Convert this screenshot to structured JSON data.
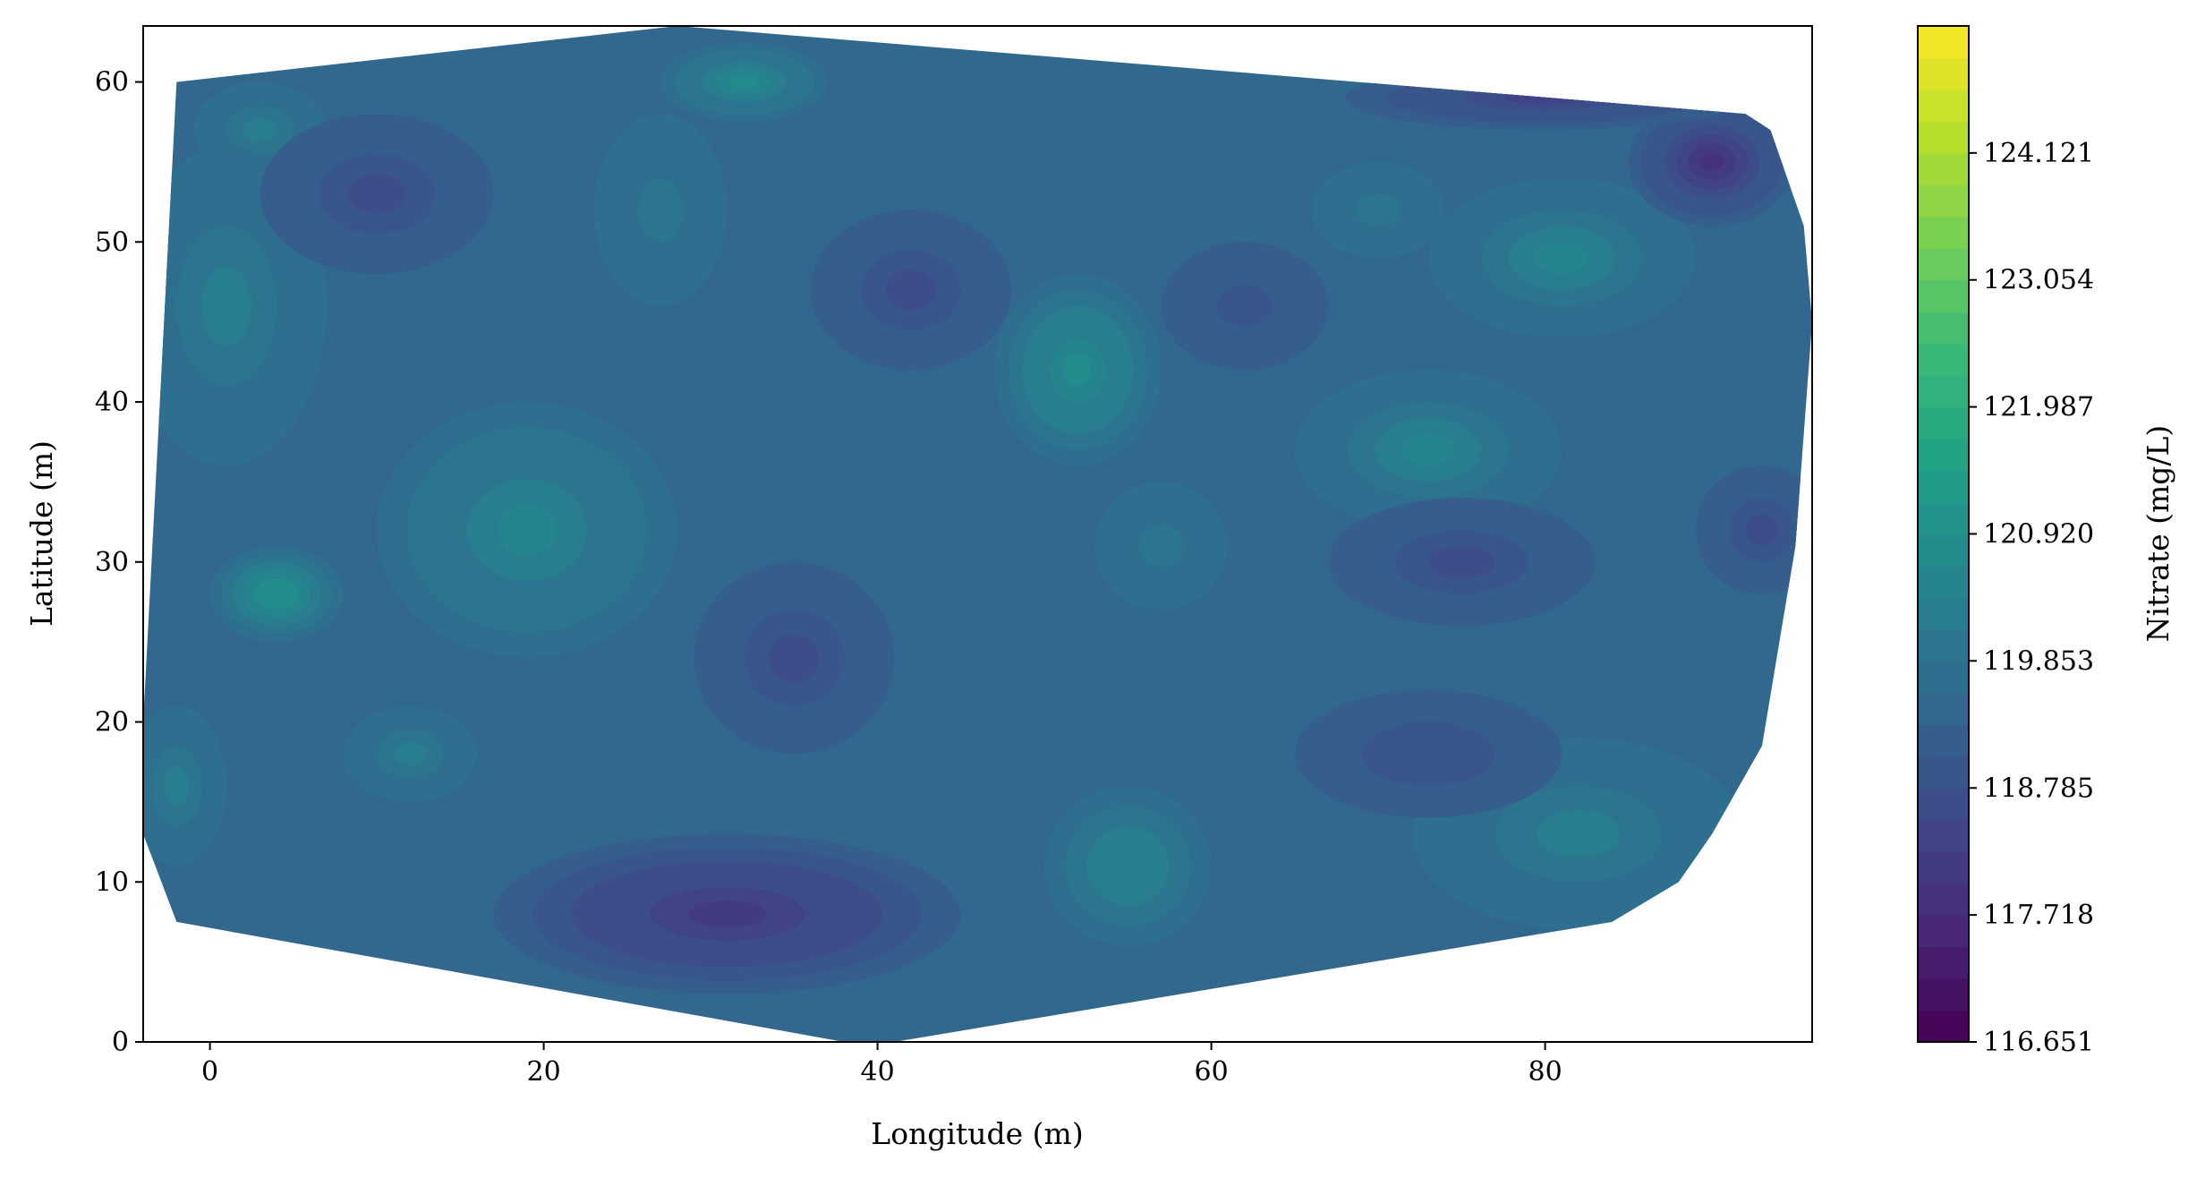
{
  "chart_data": {
    "type": "contour",
    "xlabel": "Longitude (m)",
    "ylabel": "Latitude (m)",
    "xlim": [
      -4,
      96
    ],
    "ylim": [
      0,
      63.5
    ],
    "xticks": [
      0,
      20,
      40,
      60,
      80
    ],
    "yticks": [
      0,
      10,
      20,
      30,
      40,
      50,
      60
    ],
    "colorbar": {
      "label": "Nitrate (mg/L)",
      "colormap": "viridis",
      "range": [
        116.651,
        125.188
      ],
      "ticks": [
        116.651,
        117.718,
        118.785,
        119.853,
        120.92,
        121.987,
        123.054,
        124.121
      ],
      "tick_labels": [
        "116.651",
        "117.718",
        "118.785",
        "119.853",
        "120.920",
        "121.987",
        "123.054",
        "124.121"
      ],
      "levels": 32
    },
    "hull": [
      [
        -2,
        60
      ],
      [
        28,
        63.5
      ],
      [
        92,
        58
      ],
      [
        93.5,
        57
      ],
      [
        95.5,
        51
      ],
      [
        96,
        45
      ],
      [
        95,
        31
      ],
      [
        93,
        18.5
      ],
      [
        90,
        13
      ],
      [
        88,
        10
      ],
      [
        84,
        7.5
      ],
      [
        41,
        0
      ],
      [
        38,
        0
      ],
      [
        -2,
        7.5
      ],
      [
        -4,
        13
      ],
      [
        -4,
        20
      ],
      [
        -3,
        40
      ]
    ],
    "background_value": 119.45,
    "features": [
      {
        "kind": "high",
        "x": 32,
        "y": 60,
        "rx": 5,
        "ry": 2.5,
        "value": 120.75
      },
      {
        "kind": "high",
        "x": 3,
        "y": 57,
        "rx": 4,
        "ry": 3,
        "value": 120.2
      },
      {
        "kind": "high",
        "x": 52,
        "y": 42,
        "rx": 5,
        "ry": 6,
        "value": 120.85
      },
      {
        "kind": "high",
        "x": 73,
        "y": 37,
        "rx": 8,
        "ry": 5,
        "value": 120.45
      },
      {
        "kind": "high",
        "x": 81,
        "y": 49,
        "rx": 8,
        "ry": 5,
        "value": 120.4
      },
      {
        "kind": "high",
        "x": 4,
        "y": 28,
        "rx": 4,
        "ry": 3,
        "value": 120.9
      },
      {
        "kind": "high",
        "x": 19,
        "y": 32,
        "rx": 9,
        "ry": 8,
        "value": 120.55
      },
      {
        "kind": "high",
        "x": 55,
        "y": 11,
        "rx": 5,
        "ry": 5,
        "value": 120.35
      },
      {
        "kind": "high",
        "x": 82,
        "y": 13,
        "rx": 10,
        "ry": 6,
        "value": 120.2
      },
      {
        "kind": "high",
        "x": 1,
        "y": 46,
        "rx": 6,
        "ry": 10,
        "value": 120.25
      },
      {
        "kind": "high",
        "x": -2,
        "y": 16,
        "rx": 3,
        "ry": 5,
        "value": 120.2
      },
      {
        "kind": "high",
        "x": 12,
        "y": 18,
        "rx": 4,
        "ry": 3,
        "value": 120.15
      },
      {
        "kind": "high",
        "x": 57,
        "y": 31,
        "rx": 4,
        "ry": 4,
        "value": 119.9
      },
      {
        "kind": "high",
        "x": 70,
        "y": 52,
        "rx": 4,
        "ry": 3,
        "value": 119.95
      },
      {
        "kind": "high",
        "x": 27,
        "y": 52,
        "rx": 4,
        "ry": 6,
        "value": 119.9
      },
      {
        "kind": "low",
        "x": 31,
        "y": 8,
        "rx": 14,
        "ry": 5,
        "value": 118.1
      },
      {
        "kind": "low",
        "x": 35,
        "y": 24,
        "rx": 6,
        "ry": 6,
        "value": 118.75
      },
      {
        "kind": "low",
        "x": 42,
        "y": 47,
        "rx": 6,
        "ry": 5,
        "value": 118.75
      },
      {
        "kind": "low",
        "x": 10,
        "y": 53,
        "rx": 7,
        "ry": 5,
        "value": 118.7
      },
      {
        "kind": "low",
        "x": 75,
        "y": 30,
        "rx": 8,
        "ry": 4,
        "value": 118.7
      },
      {
        "kind": "low",
        "x": 90,
        "y": 55,
        "rx": 5,
        "ry": 4,
        "value": 117.9
      },
      {
        "kind": "low",
        "x": 93,
        "y": 32,
        "rx": 4,
        "ry": 4,
        "value": 118.7
      },
      {
        "kind": "low",
        "x": 80,
        "y": 59,
        "rx": 12,
        "ry": 2,
        "value": 118.4
      },
      {
        "kind": "low",
        "x": 62,
        "y": 46,
        "rx": 5,
        "ry": 4,
        "value": 118.95
      },
      {
        "kind": "low",
        "x": 73,
        "y": 18,
        "rx": 8,
        "ry": 4,
        "value": 119.05
      }
    ]
  }
}
